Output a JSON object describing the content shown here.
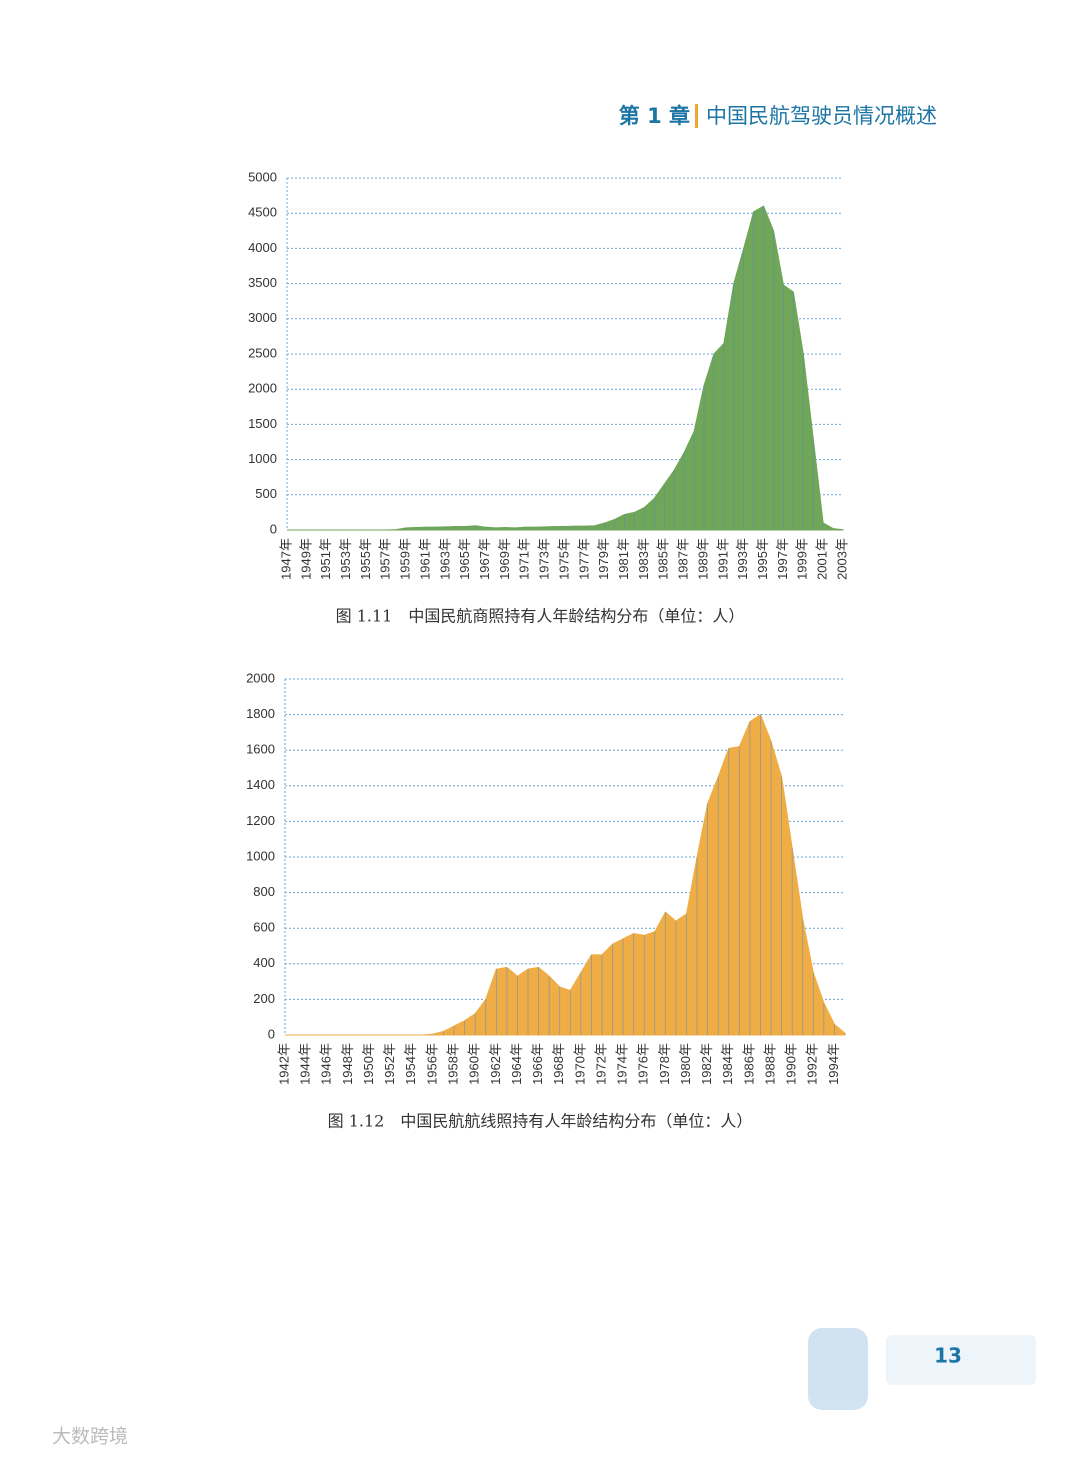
{
  "header": {
    "chapter": "第 1 章",
    "title": "中国民航驾驶员情况概述"
  },
  "chart_data": [
    {
      "type": "area",
      "caption": "图 1.11　中国民航商照持有人年龄结构分布（单位：人）",
      "categories": [
        "1947年",
        null,
        "1949年",
        null,
        "1951年",
        null,
        "1953年",
        null,
        "1955年",
        null,
        "1957年",
        null,
        "1959年",
        null,
        "1961年",
        null,
        "1963年",
        null,
        "1965年",
        null,
        "1967年",
        null,
        "1969年",
        null,
        "1971年",
        null,
        "1973年",
        null,
        "1975年",
        null,
        "1977年",
        null,
        "1979年",
        null,
        "1981年",
        null,
        "1983年",
        null,
        "1985年",
        null,
        "1987年",
        null,
        "1989年",
        null,
        "1991年",
        null,
        "1993年",
        null,
        "1995年",
        null,
        "1997年",
        null,
        "1999年",
        null,
        "2001年",
        null,
        "2003年"
      ],
      "values": [
        0,
        0,
        0,
        0,
        0,
        0,
        0,
        0,
        0,
        0,
        0,
        5,
        30,
        35,
        40,
        40,
        45,
        50,
        50,
        60,
        40,
        30,
        35,
        30,
        40,
        40,
        45,
        50,
        50,
        55,
        55,
        60,
        100,
        150,
        220,
        250,
        320,
        450,
        650,
        850,
        1100,
        1400,
        2050,
        2500,
        2650,
        3500,
        4000,
        4520,
        4600,
        4250,
        3480,
        3380,
        2500,
        1300,
        100,
        20,
        5
      ],
      "color": "#6fa657",
      "line_color": "#4f8dbf",
      "ylim": [
        0,
        5000
      ],
      "yticks": [
        0,
        500,
        1000,
        1500,
        2000,
        2500,
        3000,
        3500,
        4000,
        4500,
        5000
      ],
      "grid": true
    },
    {
      "type": "area",
      "caption": "图 1.12　中国民航航线照持有人年龄结构分布（单位：人）",
      "categories": [
        "1942年",
        null,
        "1944年",
        null,
        "1946年",
        null,
        "1948年",
        null,
        "1950年",
        null,
        "1952年",
        null,
        "1954年",
        null,
        "1956年",
        null,
        "1958年",
        null,
        "1960年",
        null,
        "1962年",
        null,
        "1964年",
        null,
        "1966年",
        null,
        "1968年",
        null,
        "1970年",
        null,
        "1972年",
        null,
        "1974年",
        null,
        "1976年",
        null,
        "1978年",
        null,
        "1980年",
        null,
        "1982年",
        null,
        "1984年",
        null,
        "1986年",
        null,
        "1988年",
        null,
        "1990年",
        null,
        "1992年",
        null,
        "1994年",
        null
      ],
      "values": [
        0,
        0,
        0,
        0,
        0,
        0,
        0,
        0,
        0,
        0,
        0,
        0,
        0,
        0,
        5,
        20,
        50,
        80,
        120,
        200,
        370,
        380,
        330,
        370,
        380,
        330,
        270,
        250,
        350,
        450,
        450,
        510,
        540,
        570,
        560,
        580,
        690,
        640,
        680,
        1000,
        1300,
        1450,
        1610,
        1620,
        1760,
        1800,
        1650,
        1450,
        1050,
        650,
        350,
        180,
        60,
        10
      ],
      "color": "#f0ad45",
      "line_color": "#4f8dbf",
      "ylim": [
        0,
        2000
      ],
      "yticks": [
        0,
        200,
        400,
        600,
        800,
        1000,
        1200,
        1400,
        1600,
        1800,
        2000
      ],
      "grid": true
    }
  ],
  "page_number": "13",
  "watermark": "大数跨境"
}
